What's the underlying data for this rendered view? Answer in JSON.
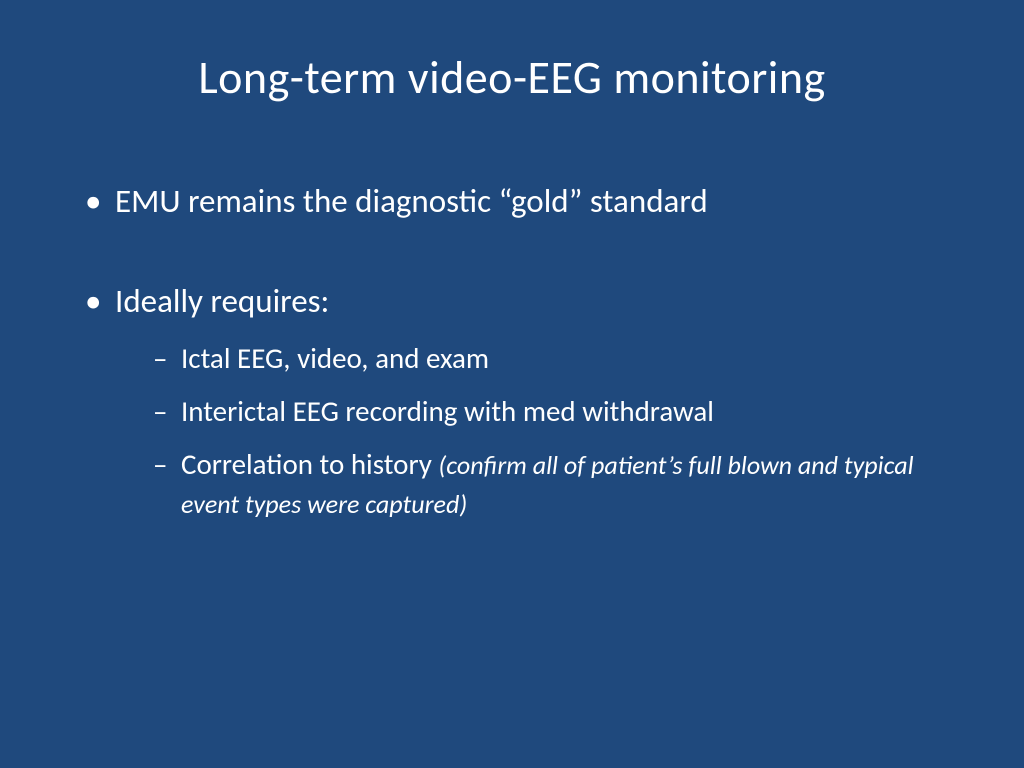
{
  "slide": {
    "background_color": "#1f497d",
    "text_color": "#ffffff",
    "title": "Long-term video-EEG monitoring",
    "title_fontsize": 46,
    "bullets": [
      {
        "text": "EMU remains the diagnostic “gold” standard",
        "fontsize": 33
      },
      {
        "text": "Ideally requires:",
        "fontsize": 33,
        "sub_items": [
          {
            "text": "Ictal EEG, video, and exam",
            "fontsize": 29
          },
          {
            "text": "Interictal EEG recording with med withdrawal",
            "fontsize": 29
          },
          {
            "text": "Correlation to history ",
            "note": "(confirm all of patient’s full blown and typical event types were captured)",
            "fontsize": 29,
            "note_fontsize": 26
          }
        ]
      }
    ]
  }
}
